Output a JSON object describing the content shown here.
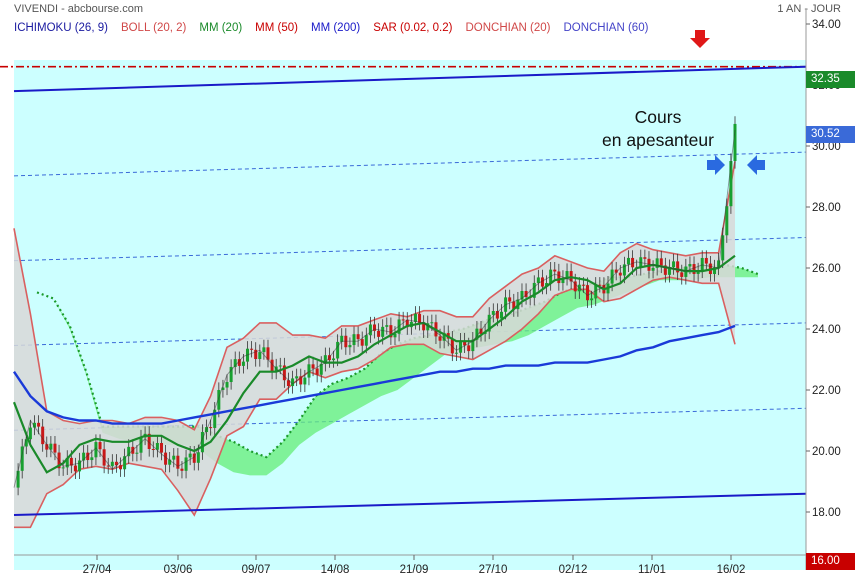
{
  "header": {
    "title": "VIVENDI - abcbourse.com",
    "period": "1 AN - JOUR"
  },
  "legend": [
    {
      "label": "ICHIMOKU (26, 9)",
      "color": "#1a1aa0"
    },
    {
      "label": "BOLL (20, 2)",
      "color": "#d04848"
    },
    {
      "label": "MM (20)",
      "color": "#1a8a2a"
    },
    {
      "label": "MM (50)",
      "color": "#c80000"
    },
    {
      "label": "MM (200)",
      "color": "#1a1ac8"
    },
    {
      "label": "SAR (0.02, 0.2)",
      "color": "#c80000"
    },
    {
      "label": "DONCHIAN (20)",
      "color": "#d04848"
    },
    {
      "label": "DONCHIAN (60)",
      "color": "#4444c8"
    }
  ],
  "annotation": {
    "line1": "Cours",
    "line2": "en apesanteur"
  },
  "price_badges": [
    {
      "text": "32.35",
      "value": 32.35,
      "color": "#1a8a2a"
    },
    {
      "text": "30.52",
      "value": 30.52,
      "color": "#3a6ad8"
    }
  ],
  "bottom_badge": "16.00",
  "colors": {
    "plot_bg": "#ccffff",
    "channel_line": "#1a1ac8",
    "resistance_line": "#c80000",
    "cloud": "#66ee77",
    "bollinger": "#d96060",
    "ma20": "#1a8a2a",
    "ma200": "#1a3ad8"
  },
  "chart_data": {
    "type": "line",
    "title": "",
    "xlabel": "",
    "ylabel": "",
    "ylim": [
      17.6,
      34.2
    ],
    "grid": false,
    "x_tick_labels": [
      "27/04",
      "03/06",
      "09/07",
      "14/08",
      "21/09",
      "27/10",
      "02/12",
      "11/01",
      "16/02"
    ],
    "y_tick_labels": [
      "18.00",
      "20.00",
      "22.00",
      "24.00",
      "26.00",
      "28.00",
      "30.00",
      "32.00",
      "34.00"
    ],
    "y_ticks": [
      18,
      20,
      22,
      24,
      26,
      28,
      30,
      32,
      34
    ],
    "resistance_level": 32.6,
    "channel_upper": {
      "start": 31.8,
      "end": 32.6
    },
    "channel_lower": {
      "start": 17.9,
      "end": 18.6
    },
    "series": [
      {
        "name": "MM (20)",
        "values": [
          21.6,
          20.2,
          19.3,
          19.6,
          20.2,
          20.4,
          20.3,
          20.3,
          20.5,
          20.5,
          20.2,
          20.0,
          20.3,
          21.0,
          21.9,
          22.6,
          22.6,
          22.8,
          23.1,
          22.9,
          22.9,
          23.1,
          23.5,
          23.8,
          24.1,
          24.2,
          23.9,
          23.6,
          23.6,
          24.0,
          24.4,
          24.9,
          25.2,
          25.6,
          25.7,
          25.6,
          25.3,
          25.5,
          26.0,
          26.1,
          26.0,
          25.9,
          25.9,
          26.0,
          26.4
        ]
      },
      {
        "name": "MM (200)",
        "values": [
          22.6,
          21.8,
          21.3,
          21.1,
          21.0,
          21.0,
          20.9,
          20.9,
          20.9,
          20.9,
          21.0,
          21.1,
          21.2,
          21.3,
          21.4,
          21.5,
          21.6,
          21.7,
          21.8,
          21.9,
          22.0,
          22.1,
          22.2,
          22.3,
          22.4,
          22.5,
          22.6,
          22.6,
          22.7,
          22.7,
          22.8,
          22.8,
          22.8,
          22.9,
          22.9,
          22.9,
          23.0,
          23.1,
          23.3,
          23.4,
          23.6,
          23.7,
          23.8,
          23.9,
          24.1
        ]
      },
      {
        "name": "BOLL (20, 2) upper",
        "values": [
          27.3,
          24.5,
          21.3,
          21.0,
          20.9,
          21.0,
          21.0,
          20.9,
          21.1,
          21.1,
          21.0,
          20.7,
          21.8,
          23.4,
          23.7,
          24.2,
          24.2,
          23.8,
          23.8,
          23.7,
          24.1,
          24.1,
          24.3,
          24.5,
          24.4,
          24.6,
          24.6,
          24.4,
          24.4,
          25.0,
          25.4,
          25.8,
          26.0,
          26.4,
          26.2,
          26.0,
          25.9,
          26.5,
          26.8,
          26.6,
          26.5,
          26.4,
          26.5,
          26.5,
          29.5
        ]
      },
      {
        "name": "BOLL (20, 2) lower",
        "values": [
          17.5,
          17.5,
          18.6,
          18.9,
          19.4,
          19.5,
          19.4,
          19.6,
          19.5,
          19.4,
          18.7,
          17.9,
          19.1,
          20.5,
          20.8,
          21.7,
          21.7,
          22.2,
          22.6,
          22.4,
          22.6,
          22.7,
          23.0,
          23.4,
          23.5,
          23.5,
          23.2,
          23.1,
          23.0,
          23.3,
          23.6,
          24.0,
          24.5,
          25.1,
          25.3,
          25.3,
          24.9,
          25.0,
          25.3,
          25.6,
          25.7,
          25.6,
          25.5,
          25.5,
          23.5
        ]
      },
      {
        "name": "ICHIMOKU (26, 9) cloud top",
        "values": [
          25.2,
          25.0,
          24.1,
          22.6,
          20.8,
          20.8,
          20.8,
          20.8,
          20.8,
          20.8,
          20.8,
          20.5,
          20.3,
          20.0,
          19.8,
          20.3,
          21.0,
          21.8,
          22.2,
          22.4,
          22.7,
          23.2,
          23.5,
          23.7,
          23.8,
          23.9,
          24.0,
          24.2,
          24.4,
          24.5,
          24.7,
          24.9,
          25.2,
          25.4,
          25.5,
          25.7,
          25.7,
          25.8,
          25.9,
          26.0,
          26.0,
          26.1,
          26.1,
          26.0,
          25.8
        ]
      },
      {
        "name": "ICHIMOKU (26, 9) cloud bottom",
        "values": [
          25.2,
          25.0,
          24.0,
          22.5,
          20.6,
          20.4,
          20.3,
          20.2,
          20.2,
          20.2,
          20.0,
          19.6,
          19.3,
          19.2,
          19.2,
          19.6,
          20.2,
          20.6,
          20.9,
          21.2,
          21.5,
          21.8,
          22.0,
          22.4,
          22.8,
          23.2,
          23.3,
          23.4,
          23.5,
          23.6,
          23.8,
          24.1,
          24.4,
          24.7,
          24.8,
          25.0,
          25.2,
          25.4,
          25.6,
          25.6,
          25.6,
          25.7,
          25.7,
          25.7,
          25.7
        ]
      },
      {
        "name": "Cours",
        "values": [
          18.8,
          21.0,
          20.2,
          19.5,
          19.6,
          20.1,
          19.4,
          19.9,
          20.4,
          19.9,
          19.5,
          19.8,
          21.0,
          22.5,
          23.1,
          23.3,
          22.7,
          22.2,
          22.6,
          22.9,
          23.6,
          23.6,
          24.0,
          23.9,
          24.3,
          24.2,
          23.8,
          23.3,
          23.6,
          24.3,
          24.8,
          25.0,
          25.5,
          25.8,
          25.6,
          25.1,
          25.4,
          26.0,
          26.2,
          26.1,
          26.0,
          25.9,
          26.1,
          26.0,
          30.52
        ]
      }
    ]
  }
}
